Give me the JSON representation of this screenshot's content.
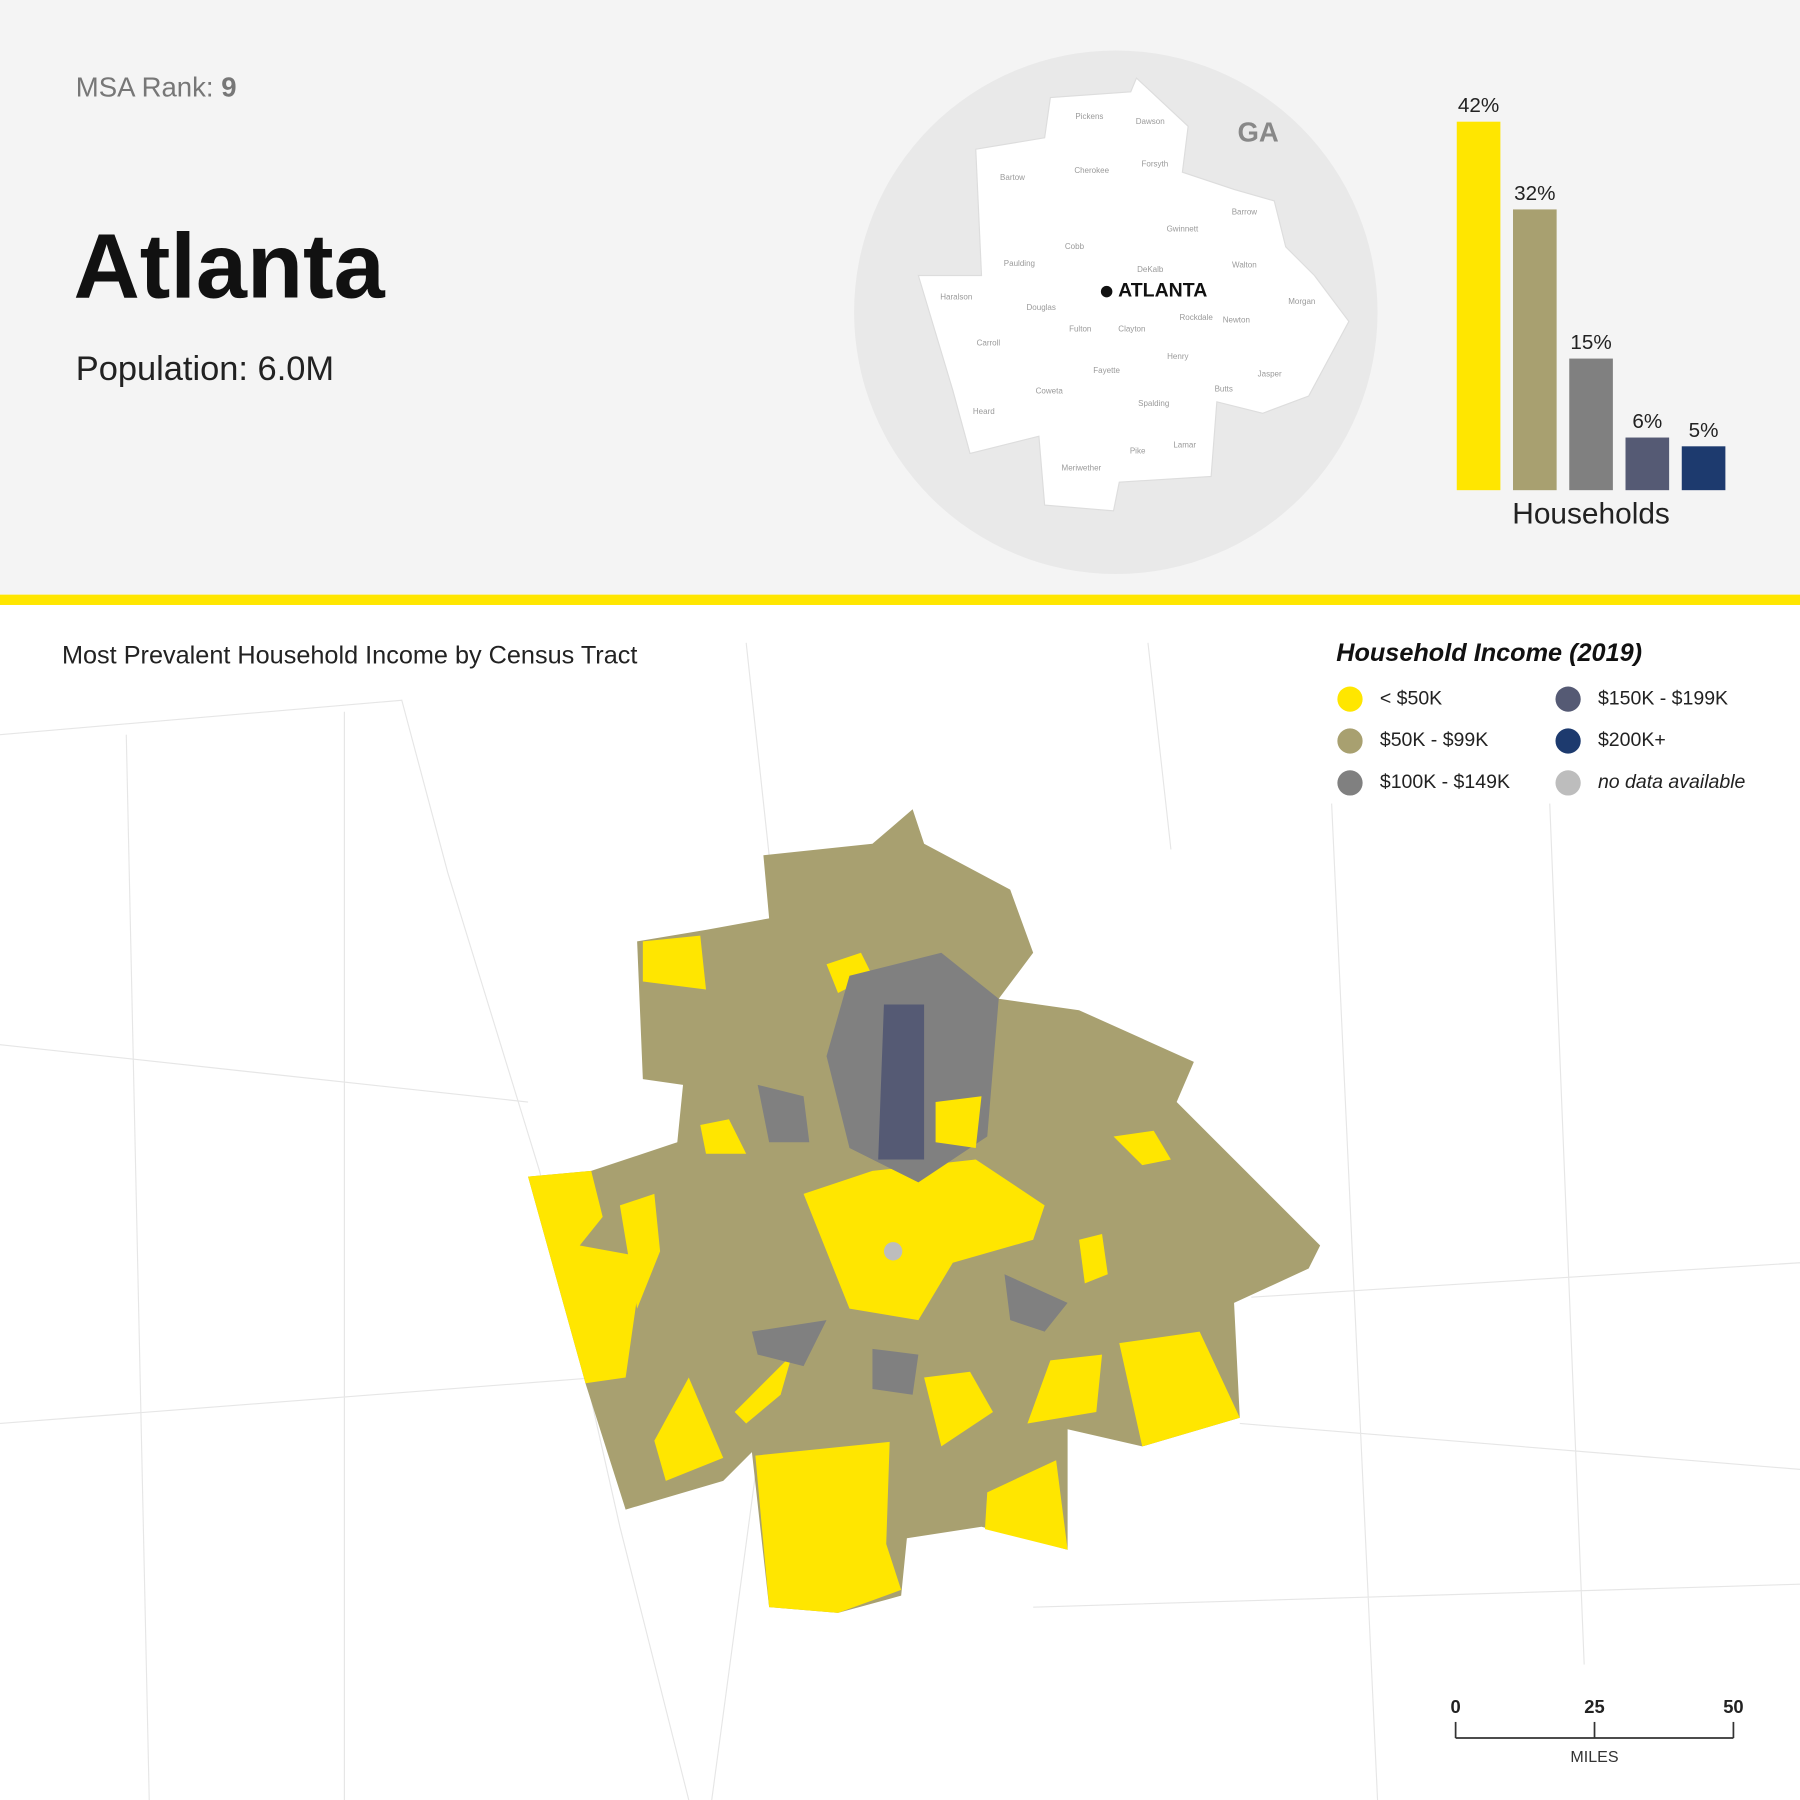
{
  "header": {
    "rank_label": "MSA Rank:",
    "rank": 9,
    "title": "Atlanta",
    "population": "Population: 6.0M"
  },
  "locator_map": {
    "state": "GA",
    "city": "ATLANTA",
    "counties": [
      "Pickens",
      "Dawson",
      "Bartow",
      "Cherokee",
      "Forsyth",
      "Barrow",
      "Gwinnett",
      "Cobb",
      "Paulding",
      "Walton",
      "DeKalb",
      "Haralson",
      "Douglas",
      "Morgan",
      "Rockdale",
      "Newton",
      "Fulton",
      "Clayton",
      "Carroll",
      "Henry",
      "Fayette",
      "Jasper",
      "Butts",
      "Coweta",
      "Spalding",
      "Heard",
      "Pike",
      "Lamar",
      "Meriwether"
    ]
  },
  "chart_data": {
    "type": "bar",
    "values": [
      42,
      32,
      15,
      6,
      5
    ],
    "value_labels": [
      "42%",
      "32%",
      "15%",
      "6%",
      "5%"
    ],
    "colors": [
      "#ffe600",
      "#a8a070",
      "#808080",
      "#555a74",
      "#1d3a6e"
    ],
    "xlabel": "Households"
  },
  "map": {
    "title": "Most Prevalent Household Income by Census Tract",
    "legend": {
      "title": "Household Income (2019)",
      "items": [
        {
          "label": "< $50K",
          "color": "#ffe600"
        },
        {
          "label": "$50K - $99K",
          "color": "#a8a070"
        },
        {
          "label": "$100K - $149K",
          "color": "#808080"
        },
        {
          "label": "$150K - $199K",
          "color": "#555a74"
        },
        {
          "label": "$200K+",
          "color": "#1d3a6e"
        },
        {
          "label": "no data available",
          "color": "#bdbdbd"
        }
      ]
    },
    "scale_bar": {
      "ticks": [
        0,
        25,
        50
      ],
      "unit": "MILES"
    }
  }
}
